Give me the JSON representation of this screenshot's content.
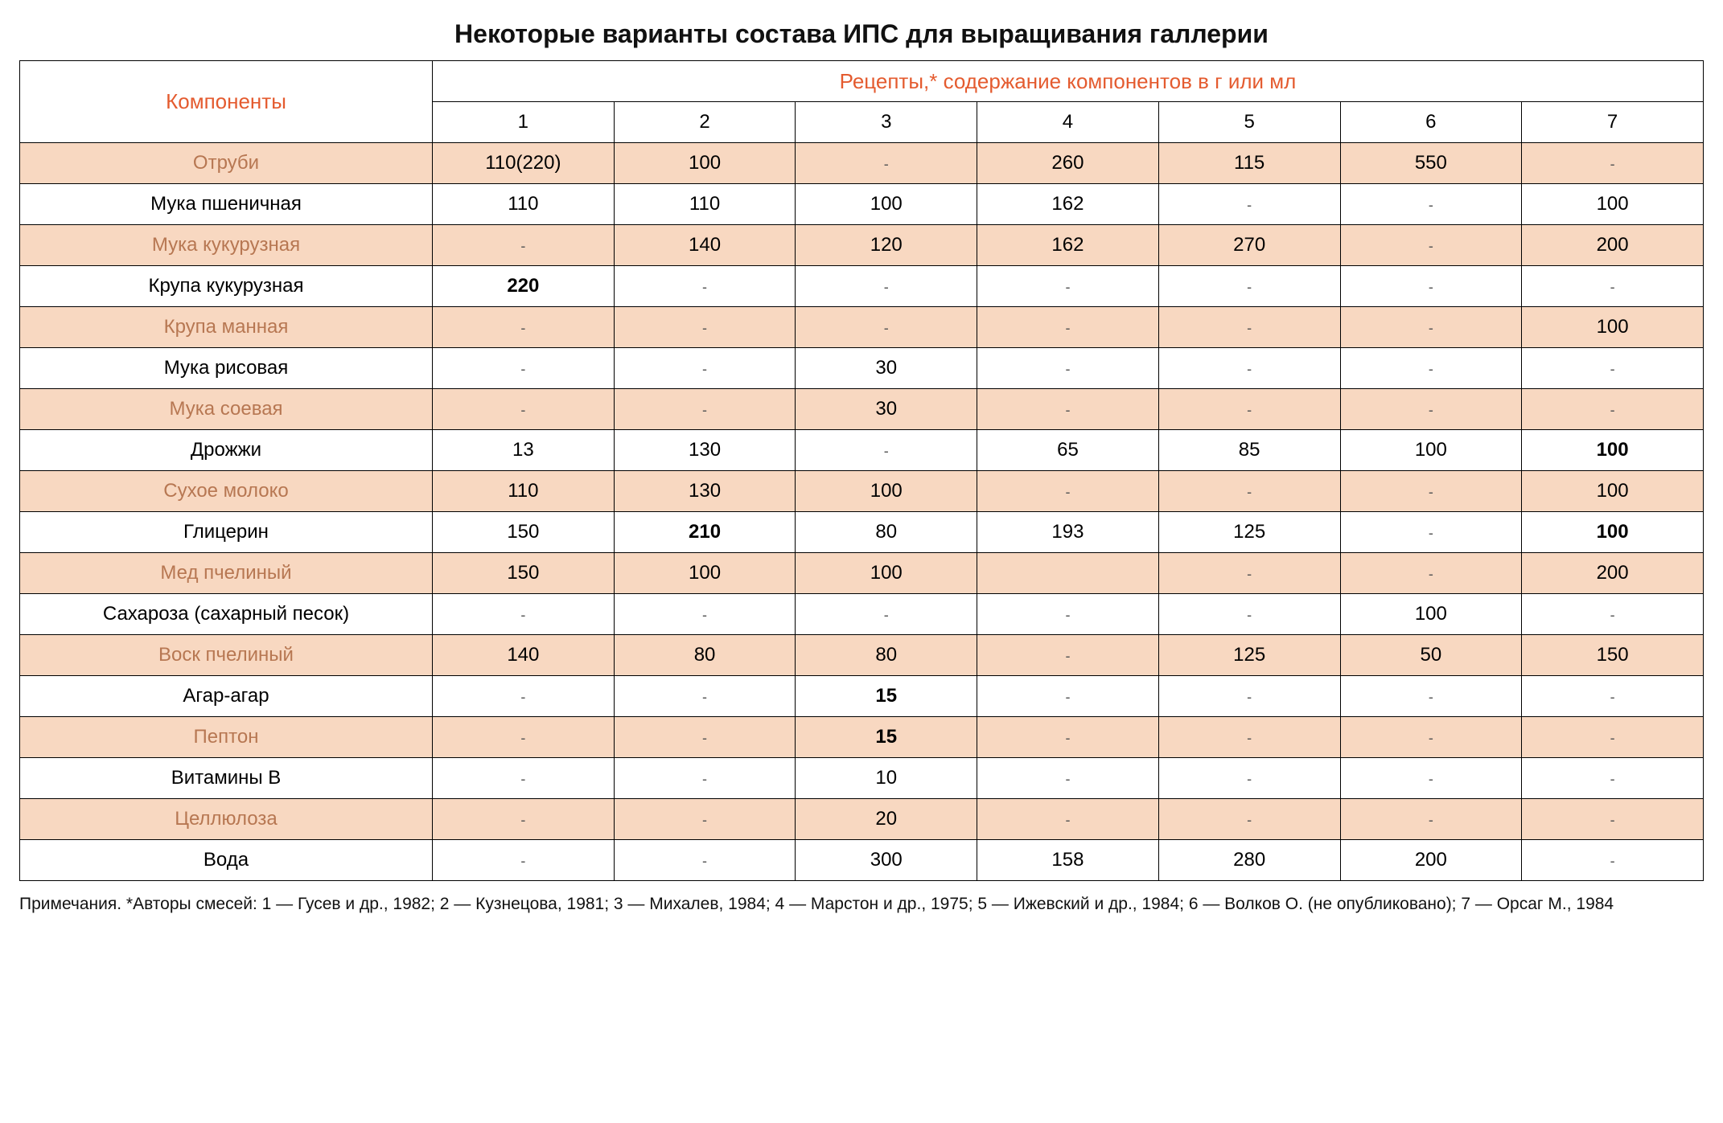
{
  "title": "Некоторые варианты состава ИПС для выращивания галлерии",
  "header": {
    "components": "Компоненты",
    "recipes": "Рецепты,* содержание компонентов в г или мл",
    "cols": [
      "1",
      "2",
      "3",
      "4",
      "5",
      "6",
      "7"
    ]
  },
  "colors": {
    "accent": "#e45b2f",
    "shaded_bg": "#f8d8c1",
    "shaded_text": "#b77752",
    "border": "#000000",
    "bg": "#ffffff"
  },
  "typography": {
    "title_fontsize": 32,
    "header_fontsize": 26,
    "cell_fontsize": 24,
    "footnote_fontsize": 21,
    "font_family": "Segoe UI, Arial, sans-serif"
  },
  "rows": [
    {
      "shaded": true,
      "label": "Отруби",
      "vals": [
        "110(220)",
        "100",
        "-",
        "260",
        "115",
        "550",
        "-"
      ]
    },
    {
      "shaded": false,
      "label": "Мука пшеничная",
      "vals": [
        "110",
        "110",
        "100",
        "162",
        "-",
        "-",
        "100"
      ]
    },
    {
      "shaded": true,
      "label": "Мука кукурузная",
      "vals": [
        "-",
        "140",
        "120",
        "162",
        "270",
        "-",
        "200"
      ]
    },
    {
      "shaded": false,
      "label": "Крупа кукурузная",
      "vals": [
        "220",
        "-",
        "-",
        "-",
        "-",
        "-",
        "-"
      ],
      "bold_idx": [
        0
      ]
    },
    {
      "shaded": true,
      "label": "Крупа манная",
      "vals": [
        "-",
        "-",
        "-",
        "-",
        "-",
        "-",
        "100"
      ]
    },
    {
      "shaded": false,
      "label": "Мука рисовая",
      "vals": [
        "-",
        "-",
        "30",
        "-",
        "-",
        "-",
        "-"
      ]
    },
    {
      "shaded": true,
      "label": "Мука соевая",
      "vals": [
        "-",
        "-",
        "30",
        "-",
        "-",
        "-",
        "-"
      ]
    },
    {
      "shaded": false,
      "label": "Дрожжи",
      "vals": [
        "13",
        "130",
        "-",
        "65",
        "85",
        "100",
        "100"
      ],
      "bold_idx": [
        6
      ]
    },
    {
      "shaded": true,
      "label": "Сухое молоко",
      "vals": [
        "110",
        "130",
        "100",
        "-",
        "-",
        "-",
        "100"
      ]
    },
    {
      "shaded": false,
      "label": "Глицерин",
      "vals": [
        "150",
        "210",
        "80",
        "193",
        "125",
        "-",
        "100"
      ],
      "bold_idx": [
        1,
        6
      ]
    },
    {
      "shaded": true,
      "label": "Мед пчелиный",
      "vals": [
        "150",
        "100",
        "100",
        "",
        "-",
        "-",
        "200"
      ]
    },
    {
      "shaded": false,
      "label": "Сахароза (сахарный песок)",
      "vals": [
        "-",
        "-",
        "-",
        "-",
        "-",
        "100",
        "-"
      ]
    },
    {
      "shaded": true,
      "label": "Воск пчелиный",
      "vals": [
        "140",
        "80",
        "80",
        "-",
        "125",
        "50",
        "150"
      ]
    },
    {
      "shaded": false,
      "label": "Агар-агар",
      "vals": [
        "-",
        "-",
        "15",
        "-",
        "-",
        "-",
        "-"
      ],
      "bold_idx": [
        2
      ]
    },
    {
      "shaded": true,
      "label": "Пептон",
      "vals": [
        "-",
        "-",
        "15",
        "-",
        "-",
        "-",
        "-"
      ],
      "bold_idx": [
        2
      ]
    },
    {
      "shaded": false,
      "label": "Витамины В",
      "vals": [
        "-",
        "-",
        "10",
        "-",
        "-",
        "-",
        "-"
      ]
    },
    {
      "shaded": true,
      "label": "Целлюлоза",
      "vals": [
        "-",
        "-",
        "20",
        "-",
        "-",
        "-",
        "-"
      ]
    },
    {
      "shaded": false,
      "label": "Вода",
      "vals": [
        "-",
        "-",
        "300",
        "158",
        "280",
        "200",
        "-"
      ]
    }
  ],
  "footnote": "Примечания. *Авторы смесей: 1 — Гусев и др., 1982; 2 — Кузнецова, 1981; 3 — Михалев, 1984; 4 — Марстон и др., 1975; 5 — Ижевский и др., 1984; 6 — Волков О. (не опубликовано); 7 — Орсаг М., 1984"
}
